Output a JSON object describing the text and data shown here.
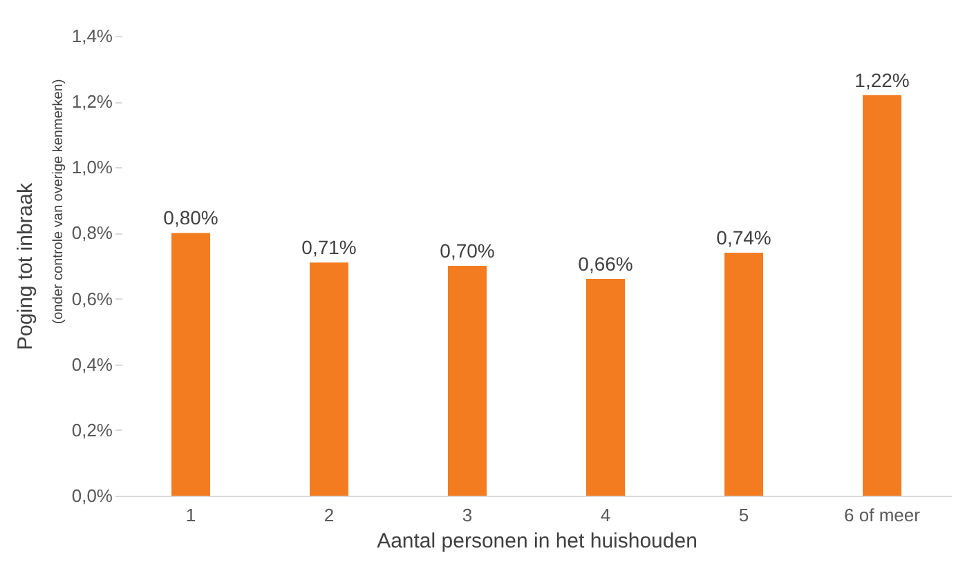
{
  "chart_data": {
    "type": "bar",
    "xlabel": "Aantal personen in het huishouden",
    "ylabel": "Poging tot inbraak",
    "annotations": [
      "(onder controle van overige kenmerken)"
    ],
    "categories": [
      "1",
      "2",
      "3",
      "4",
      "5",
      "6 of meer"
    ],
    "values": [
      0.8,
      0.71,
      0.7,
      0.66,
      0.74,
      1.22
    ],
    "value_labels": [
      "0,80%",
      "0,71%",
      "0,70%",
      "0,66%",
      "0,74%",
      "1,22%"
    ],
    "color": "#f47c20",
    "ylim": [
      0,
      1.4
    ],
    "yticks": [
      {
        "value": 0,
        "label": "0,0%"
      },
      {
        "value": 0.2,
        "label": "0,2%"
      },
      {
        "value": 0.4,
        "label": "0,4%"
      },
      {
        "value": 0.6,
        "label": "0,6%"
      },
      {
        "value": 0.8,
        "label": "0,8%"
      },
      {
        "value": 1.0,
        "label": "1,0%"
      },
      {
        "value": 1.2,
        "label": "1,2%"
      },
      {
        "value": 1.4,
        "label": "1,4%"
      }
    ],
    "grid": false
  }
}
